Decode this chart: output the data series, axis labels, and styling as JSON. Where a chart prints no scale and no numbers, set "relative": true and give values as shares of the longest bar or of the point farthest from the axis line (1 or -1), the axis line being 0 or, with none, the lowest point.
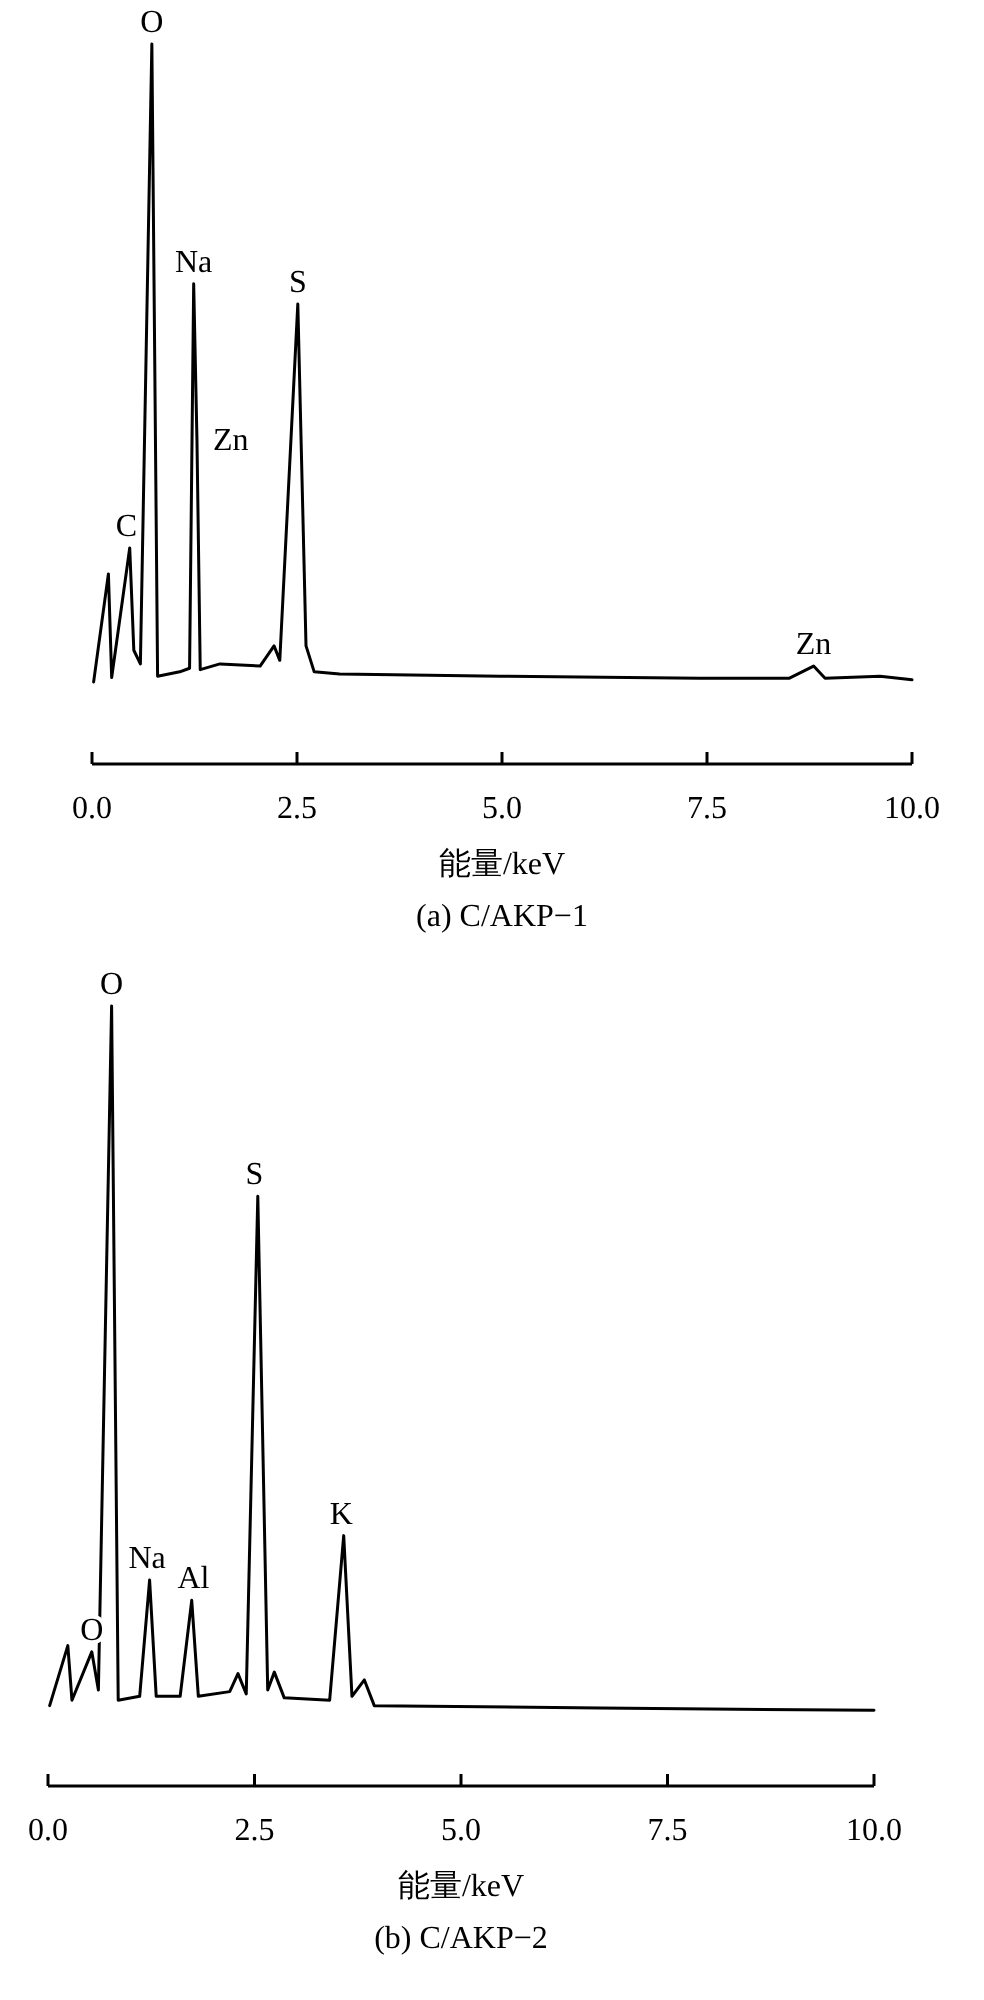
{
  "chart_data": [
    {
      "type": "line",
      "title": "(a) C/AKP−1",
      "xlabel": "能量/keV",
      "relative": true,
      "tick_labels": "x",
      "xlim": [
        0,
        10
      ],
      "xticks": [
        {
          "value": 0,
          "label": "0.0"
        },
        {
          "value": 2.5,
          "label": "2.5"
        },
        {
          "value": 5,
          "label": "5.0"
        },
        {
          "value": 7.5,
          "label": "7.5"
        },
        {
          "value": 10,
          "label": "10.0"
        }
      ],
      "series": [
        {
          "color": "#000000",
          "x": [
            0.02,
            0.2,
            0.24,
            0.46,
            0.51,
            0.59,
            0.73,
            0.8,
            1.07,
            1.19,
            1.24,
            1.28,
            1.32,
            1.56,
            2.05,
            2.22,
            2.29,
            2.51,
            2.61,
            2.71,
            3.02,
            4.98,
            7.41,
            8.5,
            8.8,
            8.94,
            9.61,
            10.0
          ],
          "values": [
            0.114,
            0.264,
            0.12,
            0.3,
            0.158,
            0.139,
            1.0,
            0.122,
            0.128,
            0.133,
            0.667,
            0.45,
            0.131,
            0.139,
            0.136,
            0.164,
            0.144,
            0.639,
            0.164,
            0.128,
            0.125,
            0.122,
            0.119,
            0.119,
            0.136,
            0.119,
            0.122,
            0.117
          ]
        }
      ],
      "annotations": [
        {
          "text": "C",
          "x": 0.42,
          "y": 0.3
        },
        {
          "text": "O",
          "x": 0.73,
          "y": 1.0
        },
        {
          "text": "Na",
          "x": 1.24,
          "y": 0.667
        },
        {
          "text": "Zn",
          "x": 1.28,
          "y": 0.45
        },
        {
          "text": "S",
          "x": 2.51,
          "y": 0.639
        },
        {
          "text": "Zn",
          "x": 8.8,
          "y": 0.136
        }
      ]
    },
    {
      "type": "line",
      "title": "(b) C/AKP−2",
      "xlabel": "能量/keV",
      "relative": true,
      "tick_labels": "x",
      "xlim": [
        0,
        10
      ],
      "xticks": [
        {
          "value": 0,
          "label": "0.0"
        },
        {
          "value": 2.5,
          "label": "2.5"
        },
        {
          "value": 5,
          "label": "5.0"
        },
        {
          "value": 7.5,
          "label": "7.5"
        },
        {
          "value": 10,
          "label": "10.0"
        }
      ],
      "series": [
        {
          "color": "#000000",
          "x": [
            0.02,
            0.24,
            0.29,
            0.53,
            0.61,
            0.77,
            0.85,
            1.11,
            1.23,
            1.31,
            1.6,
            1.74,
            1.82,
            2.2,
            2.3,
            2.4,
            2.54,
            2.66,
            2.74,
            2.86,
            3.41,
            3.58,
            3.68,
            3.83,
            3.95,
            6.68,
            10.0
          ],
          "values": [
            0.103,
            0.18,
            0.11,
            0.172,
            0.123,
            1.0,
            0.11,
            0.115,
            0.264,
            0.115,
            0.115,
            0.238,
            0.115,
            0.121,
            0.144,
            0.118,
            0.756,
            0.123,
            0.146,
            0.113,
            0.11,
            0.321,
            0.115,
            0.136,
            0.103,
            0.1,
            0.097
          ]
        }
      ],
      "annotations": [
        {
          "text": "O",
          "x": 0.53,
          "y": 0.172
        },
        {
          "text": "O",
          "x": 0.77,
          "y": 1.0
        },
        {
          "text": "Na",
          "x": 1.2,
          "y": 0.264
        },
        {
          "text": "Al",
          "x": 1.76,
          "y": 0.238
        },
        {
          "text": "S",
          "x": 2.5,
          "y": 0.756
        },
        {
          "text": "K",
          "x": 3.55,
          "y": 0.321
        }
      ]
    }
  ]
}
